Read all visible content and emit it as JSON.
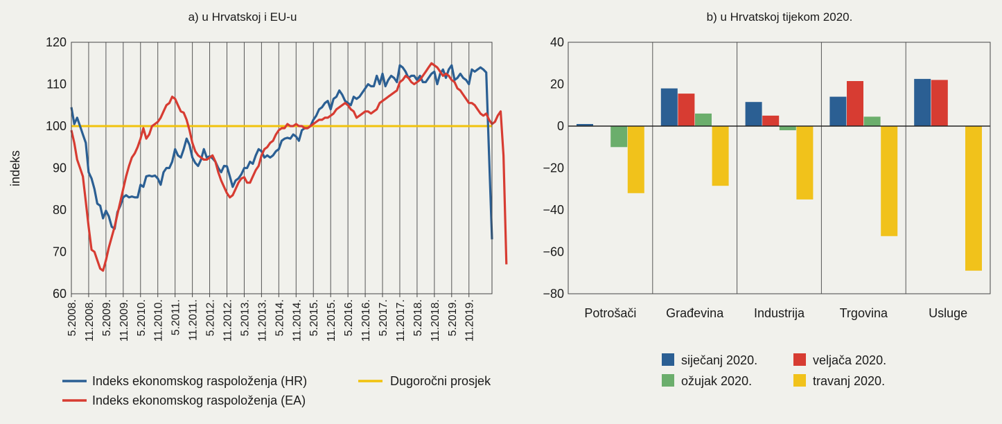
{
  "colors": {
    "hr": "#2b5f93",
    "ea": "#d73c32",
    "avg": "#f1c20d",
    "jan": "#2b5f93",
    "feb": "#d73c32",
    "mar": "#6bae6c",
    "apr": "#f1c21b",
    "grid": "#555555",
    "bg": "#f1f1ec"
  },
  "chart_data": [
    {
      "type": "line",
      "title": "a) u Hrvatskoj i EU-u",
      "ylabel": "indeks",
      "ylim": [
        60,
        120
      ],
      "yticks": [
        "60",
        "70",
        "80",
        "90",
        "100",
        "110",
        "120"
      ],
      "x_range": [
        "2008-05",
        "2020-04"
      ],
      "xtick_labels": [
        "5.2008.",
        "11.2008.",
        "5.2009.",
        "11.2009.",
        "5.2010.",
        "11.2010.",
        "5.2011.",
        "11.2011.",
        "5.2012.",
        "11.2012.",
        "5.2013.",
        "11.2013.",
        "5.2014.",
        "11.2014.",
        "5.2015.",
        "11.2015.",
        "5.2016.",
        "11.2016.",
        "5.2017.",
        "11.2017.",
        "5.2018.",
        "11.2018.",
        "5.2019.",
        "11.2019."
      ],
      "series": [
        {
          "name": "Indeks ekonomskog raspoloženja (HR)",
          "values": [
            104.5,
            100.5,
            102,
            100,
            98,
            96,
            89,
            87.5,
            85,
            81.5,
            81,
            78,
            79.8,
            78.5,
            76,
            75.5,
            79.5,
            81,
            83,
            83.5,
            83,
            83.2,
            83,
            83,
            86,
            85.5,
            88,
            88.2,
            88,
            88.2,
            87.5,
            86,
            89,
            90,
            90,
            91.5,
            94.5,
            93,
            92.5,
            94.5,
            97,
            95.5,
            92.5,
            91.2,
            90.5,
            92,
            94.5,
            92.5,
            92.8,
            92.3,
            91.5,
            90,
            89,
            90.5,
            90.4,
            88,
            85.5,
            87,
            87.5,
            88.5,
            90,
            90,
            91.5,
            91,
            93,
            94.5,
            94,
            92.5,
            93,
            92.5,
            93,
            94,
            94.5,
            96.5,
            97,
            97.2,
            97,
            98,
            97.5,
            96.5,
            99,
            99.5,
            99.5,
            100,
            101.5,
            102.5,
            104,
            104.5,
            105.5,
            106,
            104,
            106.5,
            107,
            108.5,
            107.5,
            106,
            105.5,
            105,
            107,
            106.5,
            107,
            108,
            109,
            110,
            109.5,
            109.5,
            112,
            110,
            112.5,
            109.5,
            111,
            112,
            111.5,
            110.5,
            114.5,
            114,
            113,
            111.5,
            112,
            112,
            111,
            112,
            110.5,
            110.5,
            111.5,
            112.5,
            113,
            110,
            112.5,
            113.5,
            111.5,
            113.5,
            114.5,
            111,
            111.5,
            112.5,
            111.5,
            111,
            110,
            113.5,
            113,
            113.5,
            114,
            113.5,
            112.8,
            93,
            73
          ]
        },
        {
          "name": "Indeks ekonomskog raspoloženja (EA)",
          "values": [
            99,
            96,
            92,
            90,
            88,
            82,
            76,
            70.5,
            70,
            68,
            66,
            65.5,
            68,
            71,
            73.5,
            76,
            79,
            82,
            85,
            88,
            90.5,
            92.5,
            93.5,
            95,
            97,
            99.5,
            97,
            98,
            100,
            100.5,
            101,
            102,
            103.5,
            105,
            105.5,
            107,
            106.5,
            105,
            103.5,
            103.2,
            101.5,
            99,
            96,
            94,
            93,
            92.5,
            92,
            92,
            92.5,
            93,
            91.5,
            89,
            87,
            85.5,
            84,
            83,
            83.5,
            85,
            86.5,
            87.5,
            87.8,
            86.5,
            86.5,
            88,
            89.5,
            90.5,
            93,
            94.5,
            95,
            96,
            96.5,
            98,
            99,
            99.5,
            99.5,
            100.5,
            100,
            100,
            100.5,
            100,
            100,
            99.5,
            99.5,
            100,
            100.5,
            101,
            101.5,
            101.5,
            102,
            102,
            102.5,
            103,
            104,
            104.5,
            105,
            105.5,
            105,
            104,
            103.5,
            102,
            102.5,
            103,
            103.5,
            103.5,
            103,
            103.5,
            104,
            105.5,
            106,
            106.5,
            107,
            107.5,
            108,
            108.5,
            110.5,
            111,
            112,
            111.5,
            110.5,
            110,
            110.5,
            111,
            112,
            113,
            114,
            115,
            114.5,
            114,
            113,
            112,
            112.5,
            112,
            111,
            110.5,
            109,
            108.5,
            107.5,
            106.5,
            105.5,
            105.5,
            105,
            104,
            103,
            102.5,
            103,
            101.5,
            100.5,
            101,
            102.5,
            103.5,
            93,
            67
          ]
        },
        {
          "name": "Dugoročni prosjek",
          "values": [
            100,
            100
          ]
        }
      ],
      "grid": "vertical lines every 6 months"
    },
    {
      "type": "bar",
      "title": "b) u Hrvatskoj tijekom 2020.",
      "ylim": [
        -80,
        40
      ],
      "yticks": [
        "40",
        "20",
        "0",
        "−20",
        "−40",
        "−60",
        "−80"
      ],
      "categories": [
        "Potrošači",
        "Građevina",
        "Industrija",
        "Trgovina",
        "Usluge"
      ],
      "series": [
        {
          "name": "siječanj 2020.",
          "values": [
            1,
            18,
            11.5,
            14,
            22.5
          ]
        },
        {
          "name": "veljača 2020.",
          "values": [
            null,
            15.5,
            5,
            21.5,
            22
          ]
        },
        {
          "name": "ožujak 2020.",
          "values": [
            -10,
            6,
            -2,
            4.5,
            null
          ]
        },
        {
          "name": "travanj 2020.",
          "values": [
            -32,
            -28.5,
            -35,
            -52.5,
            -69
          ]
        }
      ],
      "grid": "vertical separators between categories",
      "legend_position": "bottom"
    }
  ]
}
